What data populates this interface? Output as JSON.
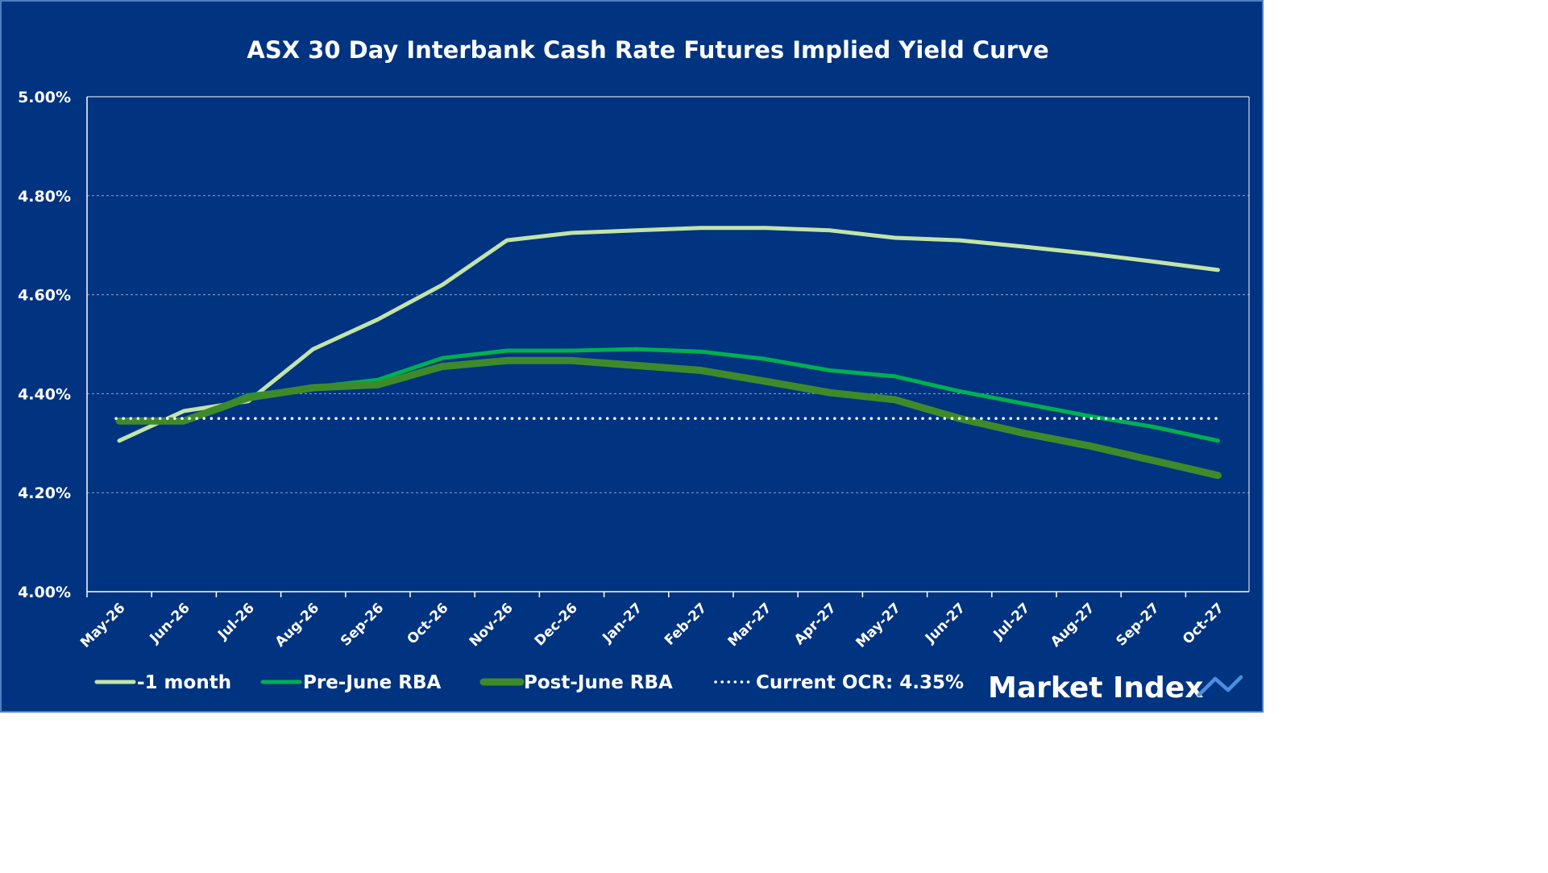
{
  "chart_data": {
    "type": "line",
    "title": "ASX 30 Day Interbank Cash Rate Futures Implied Yield Curve",
    "xlabel": "",
    "ylabel": "",
    "categories": [
      "May-26",
      "Jun-26",
      "Jul-26",
      "Aug-26",
      "Sep-26",
      "Oct-26",
      "Nov-26",
      "Dec-26",
      "Jan-27",
      "Feb-27",
      "Mar-27",
      "Apr-27",
      "May-27",
      "Jun-27",
      "Jul-27",
      "Aug-27",
      "Sep-27",
      "Oct-27"
    ],
    "ylim": [
      4.0,
      5.0
    ],
    "yticks": [
      4.0,
      4.2,
      4.4,
      4.6,
      4.8,
      5.0
    ],
    "ytick_labels": [
      "4.00%",
      "4.20%",
      "4.40%",
      "4.60%",
      "4.80%",
      "5.00%"
    ],
    "grid": "horizontal dashed",
    "legend_position": "bottom",
    "series": [
      {
        "name": "-1 month",
        "color": "#c2e4a8",
        "style": "solid",
        "values": [
          4.305,
          4.365,
          4.385,
          4.49,
          4.55,
          4.62,
          4.71,
          4.725,
          4.73,
          4.735,
          4.735,
          4.73,
          4.715,
          4.71,
          4.697,
          4.683,
          4.667,
          4.65
        ]
      },
      {
        "name": "Pre-June RBA",
        "color": "#00b050",
        "style": "solid",
        "values": [
          4.345,
          4.345,
          4.397,
          4.413,
          4.428,
          4.472,
          4.487,
          4.487,
          4.49,
          4.485,
          4.47,
          4.447,
          4.435,
          4.405,
          4.38,
          4.355,
          4.333,
          4.305
        ]
      },
      {
        "name": "Post-June RBA",
        "color": "#3e8a2a",
        "style": "solid",
        "values": [
          4.345,
          4.345,
          4.392,
          4.412,
          4.418,
          4.455,
          4.467,
          4.467,
          4.457,
          4.447,
          4.425,
          4.402,
          4.388,
          4.35,
          4.32,
          4.295,
          4.265,
          4.235
        ]
      },
      {
        "name": "Current OCR: 4.35%",
        "color": "#ffffff",
        "style": "dotted",
        "values": [
          4.35,
          4.35,
          4.35,
          4.35,
          4.35,
          4.35,
          4.35,
          4.35,
          4.35,
          4.35,
          4.35,
          4.35,
          4.35,
          4.35,
          4.35,
          4.35,
          4.35,
          4.35
        ]
      }
    ]
  },
  "brand": {
    "name": "Market Index",
    "icon": "trend-up-icon",
    "color": "#4a90e2"
  }
}
